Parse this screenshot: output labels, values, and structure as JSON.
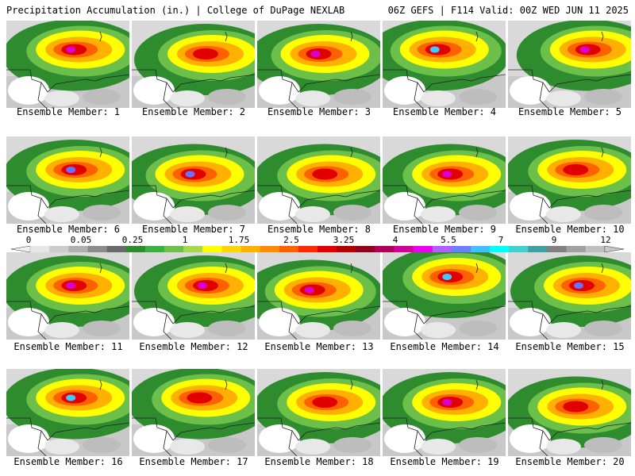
{
  "header": {
    "title": "Precipitation Accumulation (in.) | College of DuPage NEXLAB",
    "run_info": "06Z GEFS | F114 Valid: 00Z WED JUN 11 2025"
  },
  "members": [
    {
      "label": "Ensemble Member: 1",
      "core": [
        0.55,
        0.35
      ],
      "peak": "magenta"
    },
    {
      "label": "Ensemble Member: 2",
      "core": [
        0.6,
        0.4
      ],
      "peak": "red"
    },
    {
      "label": "Ensemble Member: 3",
      "core": [
        0.5,
        0.4
      ],
      "peak": "magenta"
    },
    {
      "label": "Ensemble Member: 4",
      "core": [
        0.45,
        0.35
      ],
      "peak": "cyan"
    },
    {
      "label": "Ensemble Member: 5",
      "core": [
        0.65,
        0.35
      ],
      "peak": "magenta"
    },
    {
      "label": "Ensemble Member: 6",
      "core": [
        0.55,
        0.4
      ],
      "peak": "blue"
    },
    {
      "label": "Ensemble Member: 7",
      "core": [
        0.5,
        0.45
      ],
      "peak": "blue"
    },
    {
      "label": "Ensemble Member: 8",
      "core": [
        0.55,
        0.45
      ],
      "peak": "red"
    },
    {
      "label": "Ensemble Member: 9",
      "core": [
        0.55,
        0.45
      ],
      "peak": "magenta"
    },
    {
      "label": "Ensemble Member: 10",
      "core": [
        0.55,
        0.4
      ],
      "peak": "red"
    },
    {
      "label": "Ensemble Member: 11",
      "core": [
        0.55,
        0.4
      ],
      "peak": "magenta"
    },
    {
      "label": "Ensemble Member: 12",
      "core": [
        0.6,
        0.4
      ],
      "peak": "magenta"
    },
    {
      "label": "Ensemble Member: 13",
      "core": [
        0.45,
        0.45
      ],
      "peak": "magenta"
    },
    {
      "label": "Ensemble Member: 14",
      "core": [
        0.55,
        0.3
      ],
      "peak": "cyan"
    },
    {
      "label": "Ensemble Member: 15",
      "core": [
        0.6,
        0.4
      ],
      "peak": "blue"
    },
    {
      "label": "Ensemble Member: 16",
      "core": [
        0.55,
        0.35
      ],
      "peak": "cyan"
    },
    {
      "label": "Ensemble Member: 17",
      "core": [
        0.55,
        0.35
      ],
      "peak": "red"
    },
    {
      "label": "Ensemble Member: 18",
      "core": [
        0.55,
        0.4
      ],
      "peak": "red"
    },
    {
      "label": "Ensemble Member: 19",
      "core": [
        0.55,
        0.4
      ],
      "peak": "magenta"
    },
    {
      "label": "Ensemble Member: 20",
      "core": [
        0.55,
        0.45
      ],
      "peak": "red"
    }
  ],
  "colorbar": {
    "tick_labels": [
      "0",
      "0.05",
      "0.25",
      "1",
      "1.75",
      "2.5",
      "3.25",
      "4",
      "5.5",
      "7",
      "9",
      "12"
    ],
    "colors": [
      "#e6e6e6",
      "#cccccc",
      "#b0b0b0",
      "#8c8c8c",
      "#6a6a6a",
      "#2e8b2e",
      "#3cb043",
      "#6cc04a",
      "#a6d84c",
      "#ffff00",
      "#ffd700",
      "#ffb000",
      "#ff8c00",
      "#ff6000",
      "#ff2a00",
      "#e00000",
      "#b00000",
      "#900020",
      "#b0005a",
      "#d0009a",
      "#ee00ee",
      "#b060ff",
      "#6a80ff",
      "#40c0ff",
      "#00ffff",
      "#40d0d0",
      "#40a0a0",
      "#808080",
      "#a0a0a0",
      "#c0c0c0"
    ]
  }
}
